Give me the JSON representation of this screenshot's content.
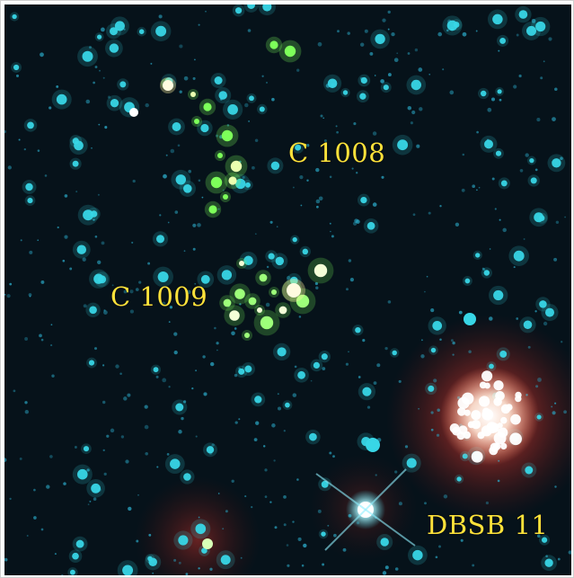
{
  "labels": {
    "c1008": "C 1008",
    "c1009": "C 1009",
    "dbsb11": "DBSB 11"
  },
  "colors": {
    "sky": "#06121a",
    "star_cyan": "#38d6e6",
    "star_green": "#7dff5a",
    "star_white": "#ffffff",
    "nebula_red": "#c8322a",
    "label_yellow": "#ffe23a"
  }
}
